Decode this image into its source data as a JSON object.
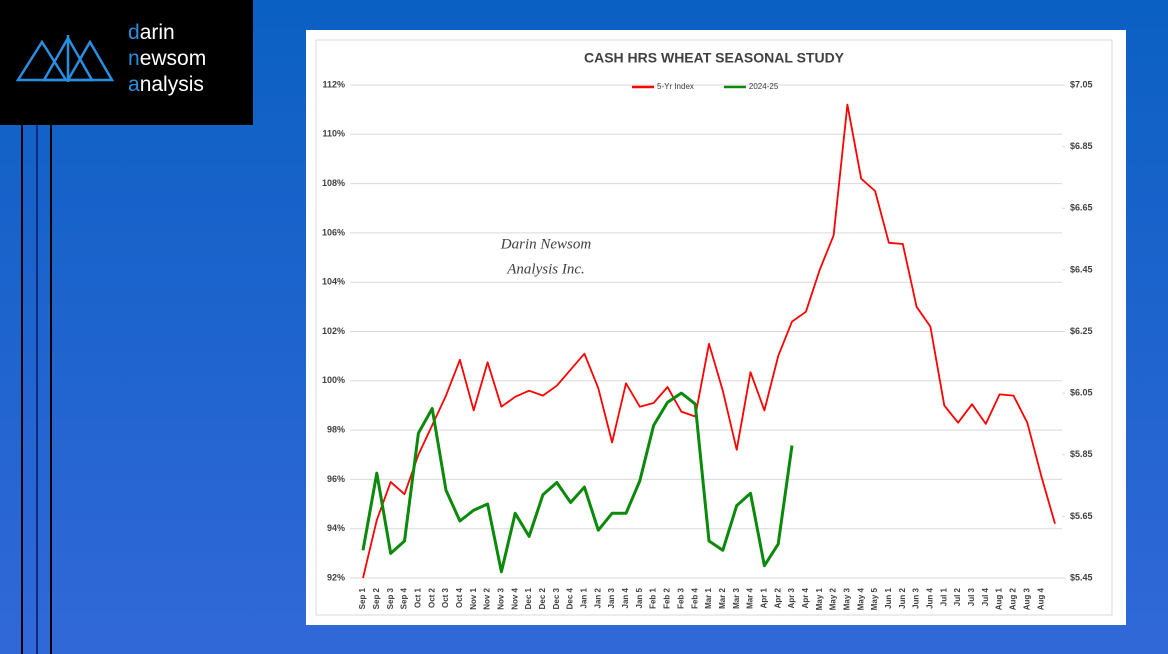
{
  "logo": [
    {
      "initial": "d",
      "rest": "arin"
    },
    {
      "initial": "n",
      "rest": "ewsom"
    },
    {
      "initial": "a",
      "rest": "nalysis"
    }
  ],
  "chart_data": {
    "type": "line",
    "title": "CASH HRS WHEAT SEASONAL STUDY",
    "watermark": [
      "Darin Newsom",
      "Analysis Inc."
    ],
    "categories": [
      "Sep 1",
      "Sep 2",
      "Sep 3",
      "Sep 4",
      "Oct 1",
      "Oct 2",
      "Oct 3",
      "Oct 4",
      "Nov 1",
      "Nov 2",
      "Nov 3",
      "Nov 4",
      "Dec 1",
      "Dec 2",
      "Dec 3",
      "Dec 4",
      "Jan 1",
      "Jan 2",
      "Jan 3",
      "Jan 4",
      "Jan 5",
      "Feb 1",
      "Feb 2",
      "Feb 3",
      "Feb 4",
      "Mar 1",
      "Mar 2",
      "Mar 3",
      "Mar 4",
      "Apr 1",
      "Apr 2",
      "Apr 3",
      "Apr 4",
      "May 1",
      "May 2",
      "May 3",
      "May 4",
      "May 5",
      "Jun 1",
      "Jun 2",
      "Jun 3",
      "Jun 4",
      "Jul 1",
      "Jul 2",
      "Jul 3",
      "Jul 4",
      "Aug 1",
      "Aug 2",
      "Aug 3",
      "Aug 4",
      null
    ],
    "series": [
      {
        "name": "5-Yr Index",
        "color": "#ff0000",
        "axis": "y",
        "values": [
          92.0,
          94.35,
          95.9,
          95.4,
          97.0,
          98.2,
          99.4,
          100.85,
          98.8,
          100.75,
          98.95,
          99.35,
          99.6,
          99.4,
          99.8,
          100.45,
          101.1,
          99.7,
          97.5,
          99.9,
          98.95,
          99.1,
          99.75,
          98.75,
          98.55,
          101.5,
          99.6,
          97.2,
          100.35,
          98.8,
          101.0,
          102.4,
          102.8,
          104.5,
          105.9,
          111.2,
          108.2,
          107.7,
          105.6,
          105.55,
          103.0,
          102.2,
          99.0,
          98.3,
          99.05,
          98.25,
          99.45,
          99.4,
          98.3,
          96.15,
          94.2
        ]
      },
      {
        "name": "2024-25",
        "color": "#0a8a0a",
        "axis": "y2",
        "values": [
          5.54,
          5.79,
          5.53,
          5.57,
          5.92,
          6.0,
          5.735,
          5.635,
          5.67,
          5.69,
          5.47,
          5.66,
          5.585,
          5.72,
          5.76,
          5.695,
          5.745,
          5.605,
          5.66,
          5.66,
          5.765,
          5.945,
          6.02,
          6.05,
          6.015,
          5.57,
          5.54,
          5.685,
          5.725,
          5.49,
          5.56,
          5.88,
          null,
          null,
          null,
          null,
          null,
          null,
          null,
          null,
          null,
          null,
          null,
          null,
          null,
          null,
          null,
          null,
          null,
          null,
          null
        ]
      }
    ],
    "ylim": [
      92,
      112
    ],
    "yticks": [
      {
        "value": 92,
        "label": "92%"
      },
      {
        "value": 94,
        "label": "94%"
      },
      {
        "value": 96,
        "label": "96%"
      },
      {
        "value": 98,
        "label": "98%"
      },
      {
        "value": 100,
        "label": "100%"
      },
      {
        "value": 102,
        "label": "102%"
      },
      {
        "value": 104,
        "label": "104%"
      },
      {
        "value": 106,
        "label": "106%"
      },
      {
        "value": 108,
        "label": "108%"
      },
      {
        "value": 110,
        "label": "110%"
      },
      {
        "value": 112,
        "label": "112%"
      }
    ],
    "y2lim": [
      5.45,
      7.05
    ],
    "y2ticks": [
      {
        "value": 5.45,
        "label": "$5.45"
      },
      {
        "value": 5.65,
        "label": "$5.65"
      },
      {
        "value": 5.85,
        "label": "$5.85"
      },
      {
        "value": 6.05,
        "label": "$6.05"
      },
      {
        "value": 6.25,
        "label": "$6.25"
      },
      {
        "value": 6.45,
        "label": "$6.45"
      },
      {
        "value": 6.65,
        "label": "$6.65"
      },
      {
        "value": 6.85,
        "label": "$6.85"
      },
      {
        "value": 7.05,
        "label": "$7.05"
      }
    ],
    "grid": true,
    "legend": "top"
  }
}
